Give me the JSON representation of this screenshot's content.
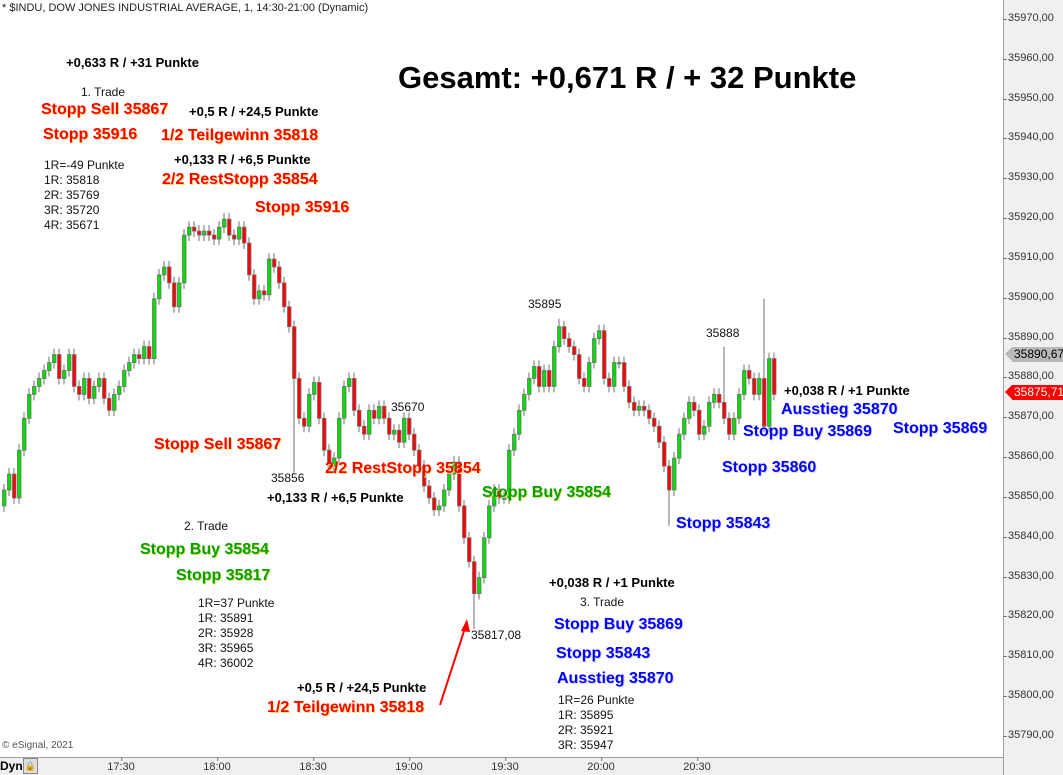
{
  "header": {
    "title": "* $INDU, DOW JONES INDUSTRIAL AVERAGE, 1, 14:30-21:00 (Dynamic)"
  },
  "colors": {
    "up": "#00e000",
    "down": "#ff0000",
    "wick": "#707070",
    "trade1": "#ff0000",
    "trade2": "#00a000",
    "trade3": "#0000ff"
  },
  "summary": "Gesamt: +0,671 R / + 32 Punkte",
  "annotations": {
    "t1_result": "+0,633 R / +31 Punkte",
    "t1_label": "1. Trade",
    "t1_entry": "Stopp Sell 35867",
    "t1_stop": "Stopp 35916",
    "t1_part1_result": "+0,5 R / +24,5 Punkte",
    "t1_part1": "1/2 Teilgewinn 35818",
    "t1_part2_result": "+0,133 R / +6,5 Punkte",
    "t1_part2": "2/2 RestStopp 35854",
    "t1_levels": [
      "1R=-49 Punkte",
      "1R: 35818",
      "2R: 35769",
      "3R: 35720",
      "4R: 35671"
    ],
    "chart_stop_35916": "Stopp 35916",
    "chart_entry_sell": "Stopp Sell 35867",
    "chart_reststopp": "2/2 RestStopp 35854",
    "chart_part2_result": "+0,133 R / +6,5 Punkte",
    "chart_stopp_buy_green": "Stopp Buy 35854",
    "t2_label": "2. Trade",
    "t2_entry": "Stopp Buy 35854",
    "t2_stop": "Stopp 35817",
    "t2_levels": [
      "1R=37 Punkte",
      "1R: 35891",
      "2R: 35928",
      "3R: 35965",
      "4R: 36002"
    ],
    "chart_part1_result": "+0,5 R / +24,5 Punkte",
    "chart_part1": "1/2 Teilgewinn 35818",
    "t3_result": "+0,038 R / +1 Punkte",
    "t3_label": "3. Trade",
    "t3_entry": "Stopp Buy 35869",
    "t3_stop": "Stopp 35843",
    "t3_exit": "Ausstieg 35870",
    "t3_levels": [
      "1R=26 Punkte",
      "1R: 35895",
      "2R: 35921",
      "3R: 35947"
    ],
    "chart_t3_result": "+0,038 R / +1 Punkte",
    "chart_t3_exit": "Ausstieg 35870",
    "chart_t3_entry": "Stopp Buy 35869",
    "chart_t3_stop_b": "Stopp 35869",
    "chart_t3_stop_c": "Stopp 35860",
    "chart_t3_stop_a": "Stopp 35843"
  },
  "copyright": "© eSignal, 2021",
  "toolbar": {
    "dyn_label": "Dyn",
    "lock_icon": "lock-icon"
  },
  "chart_data": {
    "type": "candlestick",
    "title": "* $INDU, DOW JONES INDUSTRIAL AVERAGE, 1, 14:30-21:00 (Dynamic)",
    "ylim": [
      35785,
      35975
    ],
    "y_ticks": [
      "35970,00",
      "35960,00",
      "35950,00",
      "35940,00",
      "35930,00",
      "35920,00",
      "35910,00",
      "35900,00",
      "35890,00",
      "35880,00",
      "35870,00",
      "35860,00",
      "35850,00",
      "35840,00",
      "35830,00",
      "35820,00",
      "35810,00",
      "35800,00",
      "35790,00"
    ],
    "x_ticks": [
      "17:30",
      "18:00",
      "18:30",
      "19:00",
      "19:30",
      "20:00",
      "20:30"
    ],
    "first_open": 35848,
    "closes": [
      35852,
      35856,
      35850,
      35862,
      35870,
      35876,
      35878,
      35880,
      35882,
      35884,
      35886,
      35880,
      35882,
      35886,
      35878,
      35876,
      35880,
      35875,
      35878,
      35880,
      35875,
      35872,
      35876,
      35878,
      35882,
      35884,
      35886,
      35885,
      35888,
      35885,
      35900,
      35906,
      35908,
      35904,
      35898,
      35904,
      35916,
      35918,
      35917,
      35916,
      35917,
      35916,
      35915,
      35918,
      35920,
      35916,
      35915,
      35918,
      35914,
      35906,
      35900,
      35902,
      35901,
      35910,
      35908,
      35904,
      35898,
      35893,
      35880,
      35870,
      35868,
      35876,
      35879,
      35870,
      35862,
      35858,
      35860,
      35870,
      35878,
      35880,
      35872,
      35868,
      35866,
      35872,
      35870,
      35873,
      35870,
      35866,
      35867,
      35864,
      35870,
      35866,
      35862,
      35858,
      35853,
      35850,
      35847,
      35848,
      35852,
      35856,
      35859,
      35848,
      35840,
      35834,
      35826,
      35830,
      35840,
      35848,
      35852,
      35850,
      35850,
      35862,
      35866,
      35872,
      35876,
      35880,
      35883,
      35878,
      35882,
      35878,
      35888,
      35893,
      35890,
      35888,
      35886,
      35880,
      35878,
      35884,
      35890,
      35892,
      35880,
      35878,
      35884,
      35884,
      35878,
      35874,
      35872,
      35873,
      35872,
      35870,
      35868,
      35864,
      35858,
      35852,
      35860,
      35866,
      35870,
      35874,
      35872,
      35866,
      35868,
      35874,
      35876,
      35874,
      35870,
      35866,
      35870,
      35876,
      35882,
      35880,
      35876,
      35880,
      35868,
      35885,
      35876
    ],
    "extremes": [
      {
        "index": 58,
        "low": 35856
      },
      {
        "index": 94,
        "low": 35817.08
      },
      {
        "index": 111,
        "high": 35895
      },
      {
        "index": 133,
        "low": 35843
      },
      {
        "index": 144,
        "high": 35888
      },
      {
        "index": 152,
        "high": 35900
      }
    ],
    "point_labels": [
      "35895",
      "35888",
      "35670",
      "35856",
      "35817,08"
    ],
    "last_price_labels": [
      {
        "text": "35890,67",
        "price": 35890.67,
        "style": "gray"
      },
      {
        "text": "35875,71",
        "price": 35875.71,
        "style": "red"
      }
    ]
  }
}
